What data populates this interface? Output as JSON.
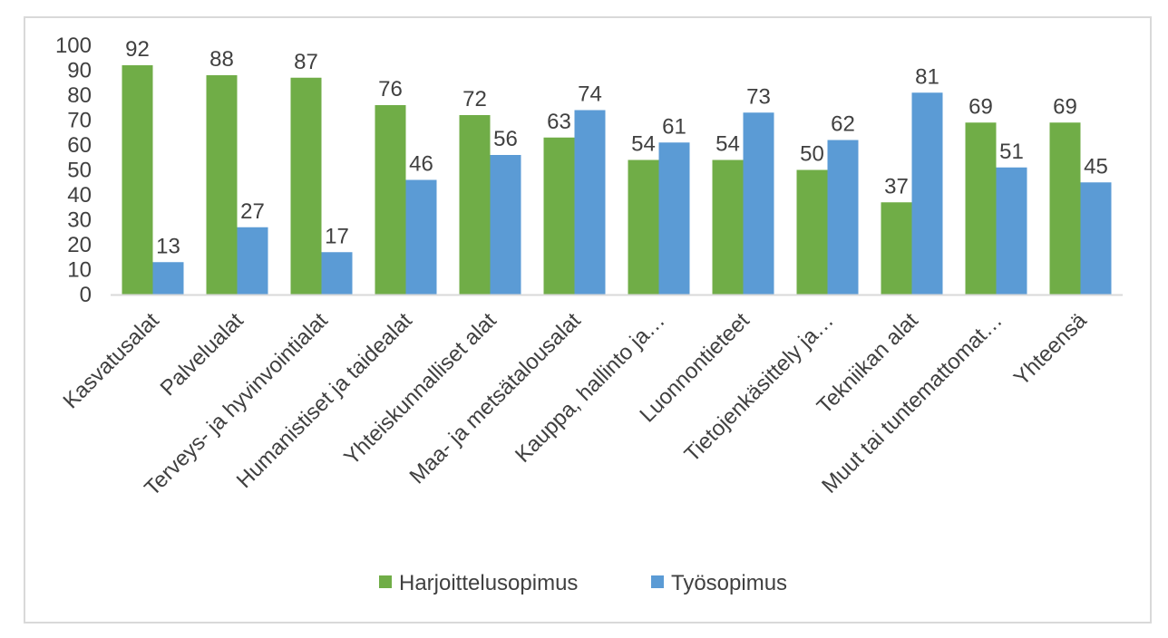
{
  "chart_data": {
    "type": "bar",
    "title": "",
    "xlabel": "",
    "ylabel": "",
    "ylim": [
      0,
      100
    ],
    "yticks": [
      0,
      10,
      20,
      30,
      40,
      50,
      60,
      70,
      80,
      90,
      100
    ],
    "grid": false,
    "legend_position": "bottom",
    "categories": [
      "Kasvatusalat",
      "Palvelualat",
      "Terveys- ja hyvinvointialat",
      "Humanistiset ja taidealat",
      "Yhteiskunnalliset alat",
      "Maa- ja metsätalousalat",
      "Kauppa, hallinto ja…",
      "Luonnontieteet",
      "Tietojenkäsittely ja…",
      "Tekniikan alat",
      "Muut tai tuntemattomat…",
      "Yhteensä"
    ],
    "series": [
      {
        "name": "Harjoittelusopimus",
        "color": "#70ad47",
        "values": [
          92,
          88,
          87,
          76,
          72,
          63,
          54,
          54,
          50,
          37,
          69,
          69
        ]
      },
      {
        "name": "Työsopimus",
        "color": "#5b9bd5",
        "values": [
          13,
          27,
          17,
          46,
          56,
          74,
          61,
          73,
          62,
          81,
          51,
          45
        ]
      }
    ]
  }
}
